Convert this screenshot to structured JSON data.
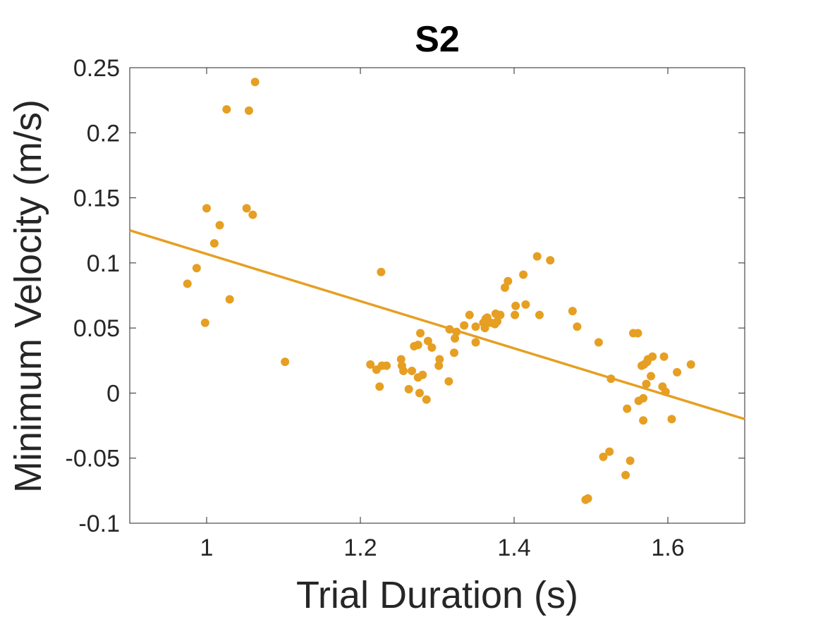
{
  "chart_data": {
    "type": "scatter",
    "title": "S2",
    "xlabel": "Trial Duration (s)",
    "ylabel": "Minimum Velocity (m/s)",
    "xlim": [
      0.9,
      1.7
    ],
    "ylim": [
      -0.1,
      0.25
    ],
    "grid": false,
    "box": true,
    "x_ticks": [
      1,
      1.2,
      1.4,
      1.6
    ],
    "x_tick_labels": [
      "1",
      "1.2",
      "1.4",
      "1.6"
    ],
    "y_ticks": [
      -0.1,
      -0.05,
      0,
      0.05,
      0.1,
      0.15,
      0.2,
      0.25
    ],
    "y_tick_labels": [
      "-0.1",
      "-0.05",
      "0",
      "0.05",
      "0.1",
      "0.15",
      "0.2",
      "0.25"
    ],
    "color": "#E69F22",
    "points": [
      [
        0.975,
        0.084
      ],
      [
        0.987,
        0.096
      ],
      [
        0.998,
        0.054
      ],
      [
        1.0,
        0.142
      ],
      [
        1.01,
        0.115
      ],
      [
        1.017,
        0.129
      ],
      [
        1.026,
        0.218
      ],
      [
        1.03,
        0.072
      ],
      [
        1.052,
        0.142
      ],
      [
        1.055,
        0.217
      ],
      [
        1.06,
        0.137
      ],
      [
        1.063,
        0.239
      ],
      [
        1.102,
        0.024
      ],
      [
        1.213,
        0.022
      ],
      [
        1.221,
        0.018
      ],
      [
        1.225,
        0.005
      ],
      [
        1.227,
        0.093
      ],
      [
        1.228,
        0.021
      ],
      [
        1.234,
        0.021
      ],
      [
        1.253,
        0.026
      ],
      [
        1.254,
        0.021
      ],
      [
        1.256,
        0.017
      ],
      [
        1.263,
        0.003
      ],
      [
        1.267,
        0.017
      ],
      [
        1.27,
        0.036
      ],
      [
        1.275,
        0.037
      ],
      [
        1.275,
        0.012
      ],
      [
        1.277,
        0.0
      ],
      [
        1.278,
        0.046
      ],
      [
        1.281,
        0.014
      ],
      [
        1.286,
        -0.005
      ],
      [
        1.288,
        0.04
      ],
      [
        1.293,
        0.035
      ],
      [
        1.302,
        0.021
      ],
      [
        1.303,
        0.026
      ],
      [
        1.315,
        0.009
      ],
      [
        1.316,
        0.049
      ],
      [
        1.322,
        0.031
      ],
      [
        1.323,
        0.042
      ],
      [
        1.325,
        0.047
      ],
      [
        1.335,
        0.052
      ],
      [
        1.342,
        0.06
      ],
      [
        1.35,
        0.039
      ],
      [
        1.35,
        0.051
      ],
      [
        1.36,
        0.054
      ],
      [
        1.362,
        0.05
      ],
      [
        1.363,
        0.057
      ],
      [
        1.365,
        0.058
      ],
      [
        1.37,
        0.054
      ],
      [
        1.375,
        0.053
      ],
      [
        1.376,
        0.061
      ],
      [
        1.378,
        0.055
      ],
      [
        1.382,
        0.06
      ],
      [
        1.388,
        0.081
      ],
      [
        1.392,
        0.086
      ],
      [
        1.401,
        0.06
      ],
      [
        1.402,
        0.067
      ],
      [
        1.412,
        0.091
      ],
      [
        1.415,
        0.068
      ],
      [
        1.43,
        0.105
      ],
      [
        1.433,
        0.06
      ],
      [
        1.447,
        0.102
      ],
      [
        1.476,
        0.063
      ],
      [
        1.482,
        0.051
      ],
      [
        1.493,
        -0.082
      ],
      [
        1.496,
        -0.081
      ],
      [
        1.51,
        0.039
      ],
      [
        1.516,
        -0.049
      ],
      [
        1.524,
        -0.045
      ],
      [
        1.526,
        0.011
      ],
      [
        1.545,
        -0.063
      ],
      [
        1.547,
        -0.012
      ],
      [
        1.551,
        -0.052
      ],
      [
        1.555,
        0.046
      ],
      [
        1.561,
        0.046
      ],
      [
        1.562,
        -0.006
      ],
      [
        1.566,
        0.021
      ],
      [
        1.568,
        -0.021
      ],
      [
        1.568,
        -0.004
      ],
      [
        1.569,
        0.022
      ],
      [
        1.572,
        0.007
      ],
      [
        1.573,
        0.024
      ],
      [
        1.574,
        0.026
      ],
      [
        1.578,
        0.013
      ],
      [
        1.58,
        0.028
      ],
      [
        1.593,
        0.005
      ],
      [
        1.595,
        0.028
      ],
      [
        1.597,
        0.001
      ],
      [
        1.605,
        -0.02
      ],
      [
        1.612,
        0.016
      ],
      [
        1.63,
        0.022
      ]
    ],
    "fit_line": {
      "x": [
        0.9,
        1.7
      ],
      "y": [
        0.125,
        -0.02
      ]
    }
  }
}
